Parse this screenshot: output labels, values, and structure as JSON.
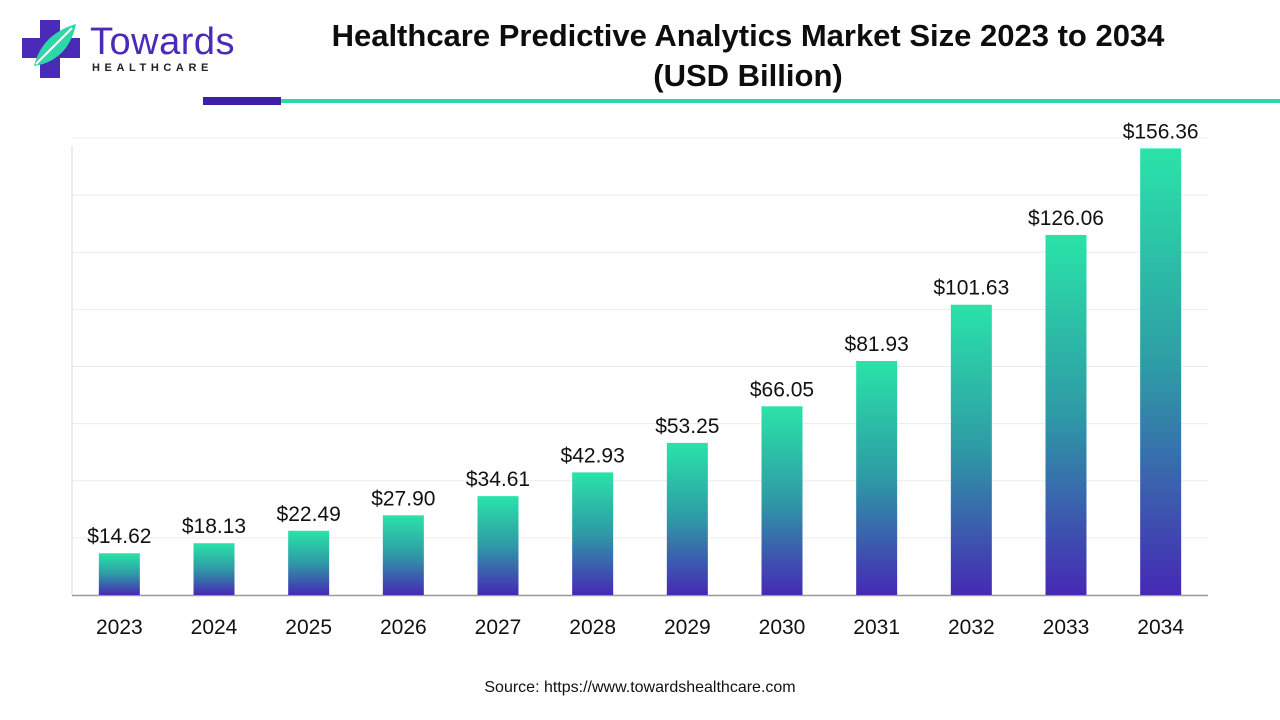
{
  "brand": {
    "name": "Towards",
    "sub": "HEALTHCARE",
    "colors": {
      "purple": "#4a2bb8",
      "teal": "#2fd6a8",
      "accent_dark": "#3c1fa8",
      "accent_teal": "#2fd6a8"
    }
  },
  "title": {
    "line1": "Healthcare Predictive Analytics Market Size 2023 to 2034",
    "line2": "(USD Billion)"
  },
  "source": "Source: https://www.towardshealthcare.com",
  "chart_data": {
    "type": "bar",
    "title": "Healthcare Predictive Analytics Market Size 2023 to 2034 (USD Billion)",
    "xlabel": "",
    "ylabel": "",
    "categories": [
      "2023",
      "2024",
      "2025",
      "2026",
      "2027",
      "2028",
      "2029",
      "2030",
      "2031",
      "2032",
      "2033",
      "2034"
    ],
    "values": [
      14.62,
      18.13,
      22.49,
      27.9,
      34.61,
      42.93,
      53.25,
      66.05,
      81.93,
      101.63,
      126.06,
      156.36
    ],
    "labels": [
      "$14.62",
      "$18.13",
      "$22.49",
      "$27.90",
      "$34.61",
      "$42.93",
      "$53.25",
      "$66.05",
      "$81.93",
      "$101.63",
      "$126.06",
      "$156.36"
    ],
    "ylim": [
      0,
      160
    ],
    "grid": true,
    "legend": "none",
    "bar_gradient": {
      "top": "#2ae3a8",
      "middle": "#2e9aa6",
      "bottom": "#4629b5"
    }
  }
}
